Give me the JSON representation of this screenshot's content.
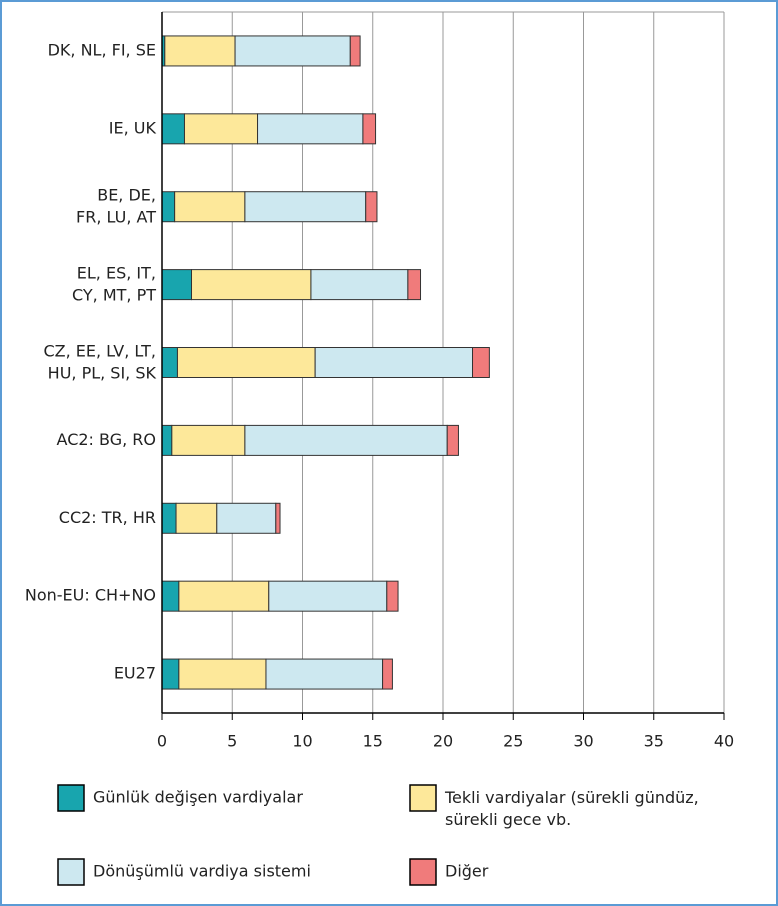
{
  "chart_data": {
    "type": "stacked-bar-horizontal",
    "categories": [
      "DK, NL, FI, SE",
      "IE, UK",
      "BE, DE,\nFR, LU, AT",
      "EL, ES, IT,\nCY, MT, PT",
      "CZ, EE, LV, LT,\nHU, PL, SI, SK",
      "AC2: BG, RO",
      "CC2: TR, HR",
      "Non-EU: CH+NO",
      "EU27"
    ],
    "series": [
      {
        "name": "Günlük değişen vardiyalar",
        "color": "#18a5ae",
        "values": [
          0.2,
          1.6,
          0.9,
          2.1,
          1.1,
          0.7,
          1.0,
          1.2,
          1.2
        ]
      },
      {
        "name": "Tekli vardiyalar (sürekli gündüz,\nsürekli gece vb.",
        "color": "#fde89a",
        "values": [
          5.0,
          5.2,
          5.0,
          8.5,
          9.8,
          5.2,
          2.9,
          6.4,
          6.2
        ]
      },
      {
        "name": "Dönüşümlü vardiya sistemi",
        "color": "#cde8f0",
        "values": [
          8.2,
          7.5,
          8.6,
          6.9,
          11.2,
          14.4,
          4.2,
          8.4,
          8.3
        ]
      },
      {
        "name": "Diğer",
        "color": "#f07b7b",
        "values": [
          0.7,
          0.9,
          0.8,
          0.9,
          1.2,
          0.8,
          0.3,
          0.8,
          0.7
        ]
      }
    ],
    "xlim": [
      0,
      40
    ],
    "xticks": [
      0,
      5,
      10,
      15,
      20,
      25,
      30,
      35,
      40
    ],
    "grid": true
  }
}
